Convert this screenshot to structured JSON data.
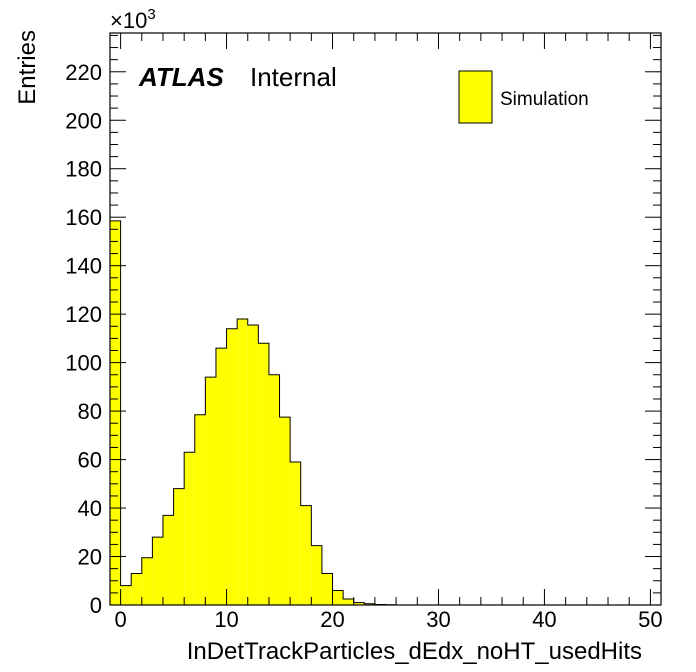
{
  "chart_data": {
    "type": "bar",
    "style": "histogram",
    "xlabel": "InDetTrackParticles_dEdx_noHT_usedHits",
    "ylabel": "Entries",
    "y_multiplier": {
      "base": "×10",
      "exponent": "3"
    },
    "xlim": [
      -1,
      51
    ],
    "ylim": [
      0,
      236
    ],
    "x_ticks": [
      0,
      10,
      20,
      30,
      40,
      50
    ],
    "y_ticks": [
      0,
      20,
      40,
      60,
      80,
      100,
      120,
      140,
      160,
      180,
      200,
      220
    ],
    "bin_edges_start": -1,
    "bin_width": 1,
    "values": [
      158.5,
      8,
      13,
      19.5,
      28,
      37,
      48,
      63,
      78.5,
      94,
      106,
      114,
      118,
      115.5,
      108,
      95,
      77.5,
      59,
      41,
      24.5,
      13,
      6,
      2.5,
      1,
      0.5,
      0.2,
      0.1,
      0,
      0,
      0,
      0,
      0,
      0,
      0,
      0,
      0,
      0,
      0,
      0,
      0,
      0,
      0,
      0,
      0,
      0,
      0,
      0,
      0,
      0,
      0,
      0,
      0
    ],
    "fill_color": "#ffff00",
    "line_color": "#000000",
    "legend": {
      "label": "Simulation",
      "position": "top-right"
    },
    "annotation": {
      "atlas": "ATLAS",
      "status": "Internal"
    }
  }
}
